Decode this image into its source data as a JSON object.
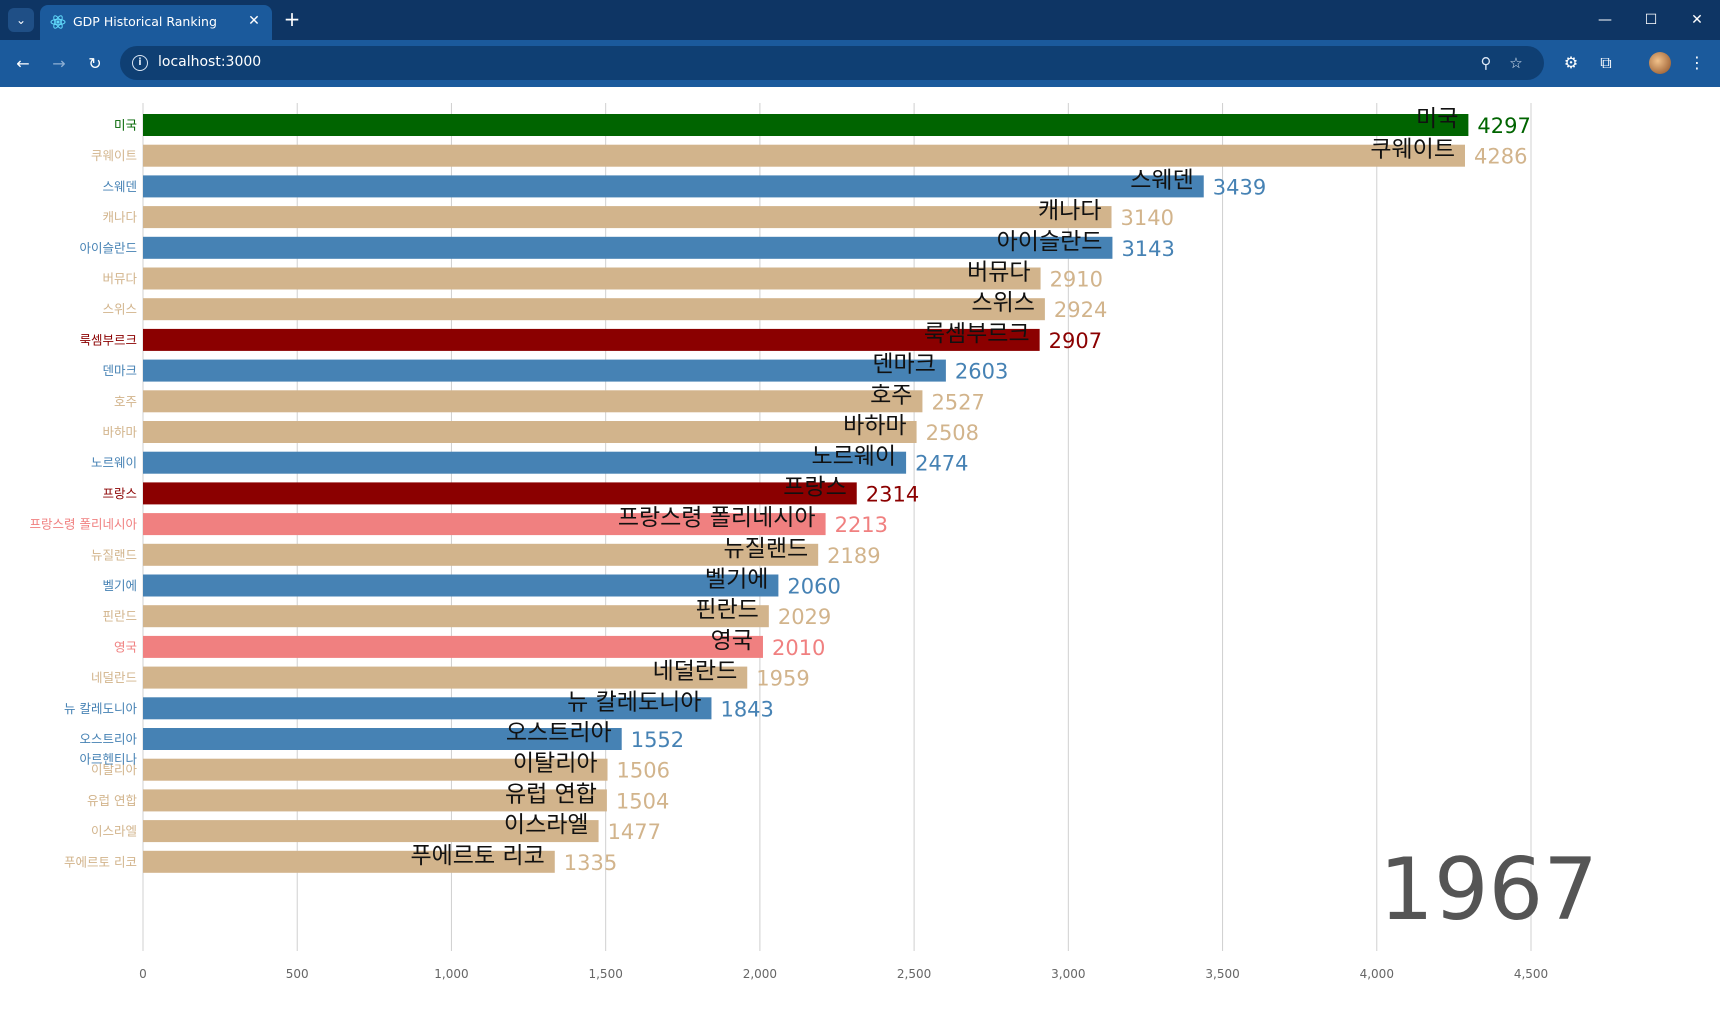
{
  "browser": {
    "tab_title": "GDP Historical Ranking",
    "url": "localhost:3000",
    "icons": {
      "tab_search": "chevron-down-icon",
      "favicon": "react-atom-icon",
      "tab_close": "close-icon",
      "new_tab": "plus-icon",
      "back": "back-arrow-icon",
      "forward": "forward-arrow-icon",
      "reload": "reload-icon",
      "site_info": "info-icon",
      "zoom": "zoom-icon",
      "bookmark": "star-icon",
      "extension1": "extension-gear-icon",
      "extensions": "puzzle-icon",
      "menu": "kebab-menu-icon"
    },
    "glyphs": {
      "tab_search": "⌄",
      "tab_close": "✕",
      "new_tab": "+",
      "back": "←",
      "forward": "→",
      "reload": "↻",
      "site_info": "i",
      "zoom": "⚲",
      "bookmark": "☆",
      "extension1": "⚙",
      "extensions": "⧉",
      "menu": "⋮",
      "minimize": "—",
      "maximize": "☐",
      "close": "✕"
    },
    "window_controls": [
      "minimize",
      "maximize",
      "close"
    ]
  },
  "chart_data": {
    "type": "bar",
    "orientation": "horizontal",
    "year": "1967",
    "xlim": [
      0,
      4500
    ],
    "x_ticks": [
      "0",
      "500",
      "1,000",
      "1,500",
      "2,000",
      "2,500",
      "3,000",
      "3,500",
      "4,000",
      "4,500"
    ],
    "x_tick_values": [
      0,
      500,
      1000,
      1500,
      2000,
      2500,
      3000,
      3500,
      4000,
      4500
    ],
    "grid": true,
    "colors": {
      "green": "#006400",
      "tan": "#d2b48c",
      "blue": "#4682b4",
      "darkred": "#8b0000",
      "pink": "#f08080"
    },
    "bars": [
      {
        "label": "미국",
        "value": 4297,
        "color": "green"
      },
      {
        "label": "쿠웨이트",
        "value": 4286,
        "color": "tan"
      },
      {
        "label": "스웨덴",
        "value": 3439,
        "color": "blue"
      },
      {
        "label": "캐나다",
        "value": 3140,
        "color": "tan"
      },
      {
        "label": "아이슬란드",
        "value": 3143,
        "color": "blue"
      },
      {
        "label": "버뮤다",
        "value": 2910,
        "color": "tan"
      },
      {
        "label": "스위스",
        "value": 2924,
        "color": "tan"
      },
      {
        "label": "룩셈부르크",
        "value": 2907,
        "color": "darkred"
      },
      {
        "label": "덴마크",
        "value": 2603,
        "color": "blue"
      },
      {
        "label": "호주",
        "value": 2527,
        "color": "tan"
      },
      {
        "label": "바하마",
        "value": 2508,
        "color": "tan"
      },
      {
        "label": "노르웨이",
        "value": 2474,
        "color": "blue"
      },
      {
        "label": "프랑스",
        "value": 2314,
        "color": "darkred"
      },
      {
        "label": "프랑스령 폴리네시아",
        "value": 2213,
        "color": "pink"
      },
      {
        "label": "뉴질랜드",
        "value": 2189,
        "color": "tan"
      },
      {
        "label": "벨기에",
        "value": 2060,
        "color": "blue"
      },
      {
        "label": "핀란드",
        "value": 2029,
        "color": "tan"
      },
      {
        "label": "영국",
        "value": 2010,
        "color": "pink"
      },
      {
        "label": "네덜란드",
        "value": 1959,
        "color": "tan"
      },
      {
        "label": "뉴 칼레도니아",
        "value": 1843,
        "color": "blue"
      },
      {
        "label": "오스트리아",
        "value": 1552,
        "color": "blue"
      },
      {
        "label": "이탈리아",
        "value": 1506,
        "color": "tan"
      },
      {
        "label": "유럽 연합",
        "value": 1504,
        "color": "tan"
      },
      {
        "label": "이스라엘",
        "value": 1477,
        "color": "tan"
      },
      {
        "label": "푸에르토 리코",
        "value": 1335,
        "color": "tan"
      }
    ],
    "extra_axis_labels": [
      {
        "label": "아르헨티나",
        "color": "blue"
      }
    ]
  }
}
